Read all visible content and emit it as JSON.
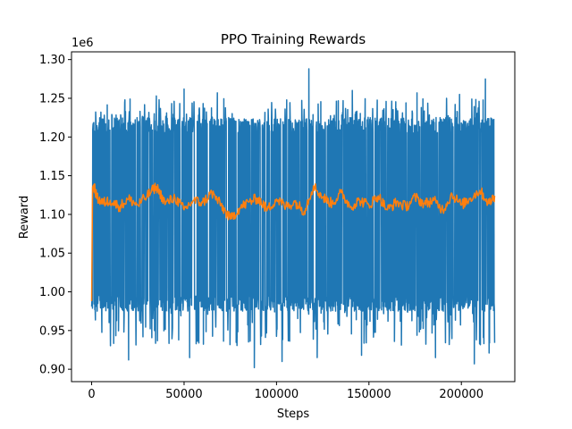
{
  "chart_data": {
    "type": "line",
    "title": "PPO Training Rewards",
    "xlabel": "Steps",
    "ylabel": "Reward",
    "y_offset_label": "1e6",
    "xlim": [
      -10900,
      228900
    ],
    "ylim": [
      0.884,
      1.31
    ],
    "xticks": [
      0,
      50000,
      100000,
      150000,
      200000
    ],
    "xtick_labels": [
      "0",
      "50000",
      "100000",
      "150000",
      "200000"
    ],
    "yticks": [
      0.9,
      0.95,
      1.0,
      1.05,
      1.1,
      1.15,
      1.2,
      1.25,
      1.3
    ],
    "ytick_labels": [
      "0.90",
      "0.95",
      "1.00",
      "1.05",
      "1.10",
      "1.15",
      "1.20",
      "1.25",
      "1.30"
    ],
    "grid": false,
    "legend": "none",
    "series": [
      {
        "color": "#1f77b4",
        "description": "raw episode reward (dense, noisy)",
        "x_start": 0,
        "x_end": 218000,
        "band_y": [
          0.975,
          1.225
        ],
        "peaks_up": [
          {
            "x": 5000,
            "y": 1.232
          },
          {
            "x": 18000,
            "y": 1.248
          },
          {
            "x": 35000,
            "y": 1.253
          },
          {
            "x": 50000,
            "y": 1.262
          },
          {
            "x": 68000,
            "y": 1.257
          },
          {
            "x": 117500,
            "y": 1.288
          },
          {
            "x": 141000,
            "y": 1.26
          },
          {
            "x": 176000,
            "y": 1.257
          },
          {
            "x": 199000,
            "y": 1.255
          },
          {
            "x": 213000,
            "y": 1.275
          }
        ],
        "peaks_down": [
          {
            "x": 3000,
            "y": 0.975
          },
          {
            "x": 20000,
            "y": 0.912
          },
          {
            "x": 53000,
            "y": 0.915
          },
          {
            "x": 88000,
            "y": 0.902
          },
          {
            "x": 103000,
            "y": 0.91
          },
          {
            "x": 122000,
            "y": 0.915
          },
          {
            "x": 146000,
            "y": 0.918
          },
          {
            "x": 186000,
            "y": 0.915
          },
          {
            "x": 207000,
            "y": 0.907
          },
          {
            "x": 215000,
            "y": 0.921
          }
        ]
      },
      {
        "color": "#ff7f0e",
        "description": "moving average reward",
        "x": [
          0,
          500,
          1000,
          3000,
          6000,
          10000,
          15000,
          20000,
          25000,
          30000,
          35000,
          40000,
          45000,
          50000,
          55000,
          60000,
          65000,
          70000,
          75000,
          80000,
          85000,
          90000,
          95000,
          100000,
          105000,
          110000,
          115000,
          120000,
          125000,
          130000,
          135000,
          140000,
          145000,
          150000,
          155000,
          160000,
          165000,
          170000,
          175000,
          180000,
          185000,
          190000,
          195000,
          200000,
          205000,
          210000,
          215000,
          218000
        ],
        "y": [
          0.988,
          1.135,
          1.138,
          1.121,
          1.115,
          1.118,
          1.11,
          1.12,
          1.112,
          1.124,
          1.136,
          1.114,
          1.122,
          1.106,
          1.118,
          1.115,
          1.128,
          1.112,
          1.094,
          1.108,
          1.116,
          1.121,
          1.106,
          1.12,
          1.11,
          1.116,
          1.104,
          1.137,
          1.122,
          1.114,
          1.128,
          1.11,
          1.118,
          1.112,
          1.124,
          1.106,
          1.116,
          1.11,
          1.122,
          1.114,
          1.118,
          1.106,
          1.126,
          1.112,
          1.121,
          1.131,
          1.114,
          1.124
        ]
      }
    ]
  }
}
